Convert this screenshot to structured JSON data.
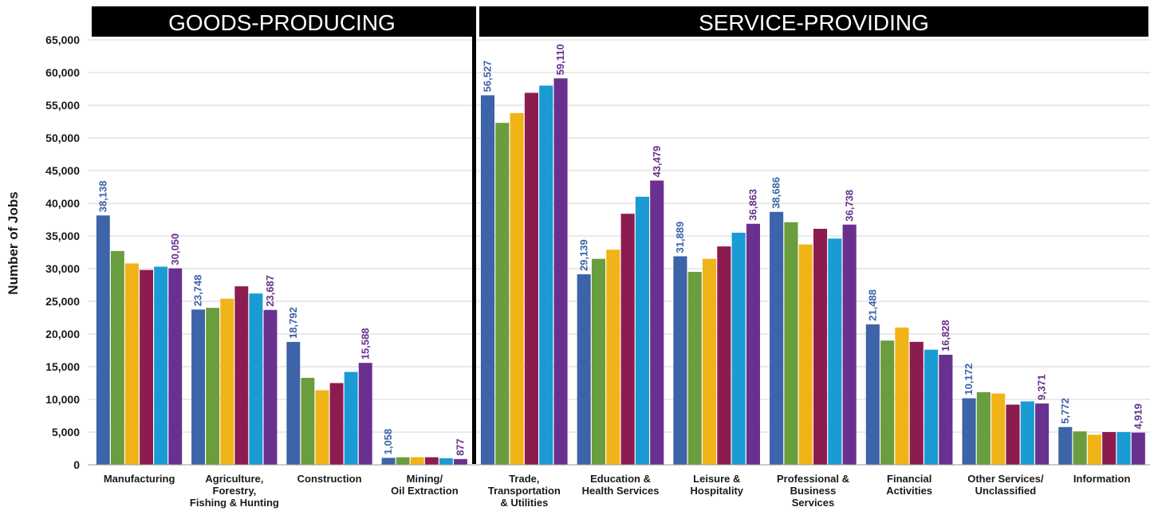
{
  "chart_data": {
    "type": "bar",
    "ylabel": "Number of Jobs",
    "ylim": [
      0,
      65000
    ],
    "yticks": [
      "0",
      "5,000",
      "10,000",
      "15,000",
      "20,000",
      "25,000",
      "30,000",
      "35,000",
      "40,000",
      "45,000",
      "50,000",
      "55,000",
      "60,000",
      "65,000"
    ],
    "grid": true,
    "groups": [
      {
        "title": "GOODS-PRODUCING",
        "category_count": 4
      },
      {
        "title": "SERVICE-PROVIDING",
        "category_count": 7
      }
    ],
    "categories": [
      "Manufacturing",
      "Agriculture,\nForestry,\nFishing & Hunting",
      "Construction",
      "Mining/\nOil Extraction",
      "Trade,\nTransportation\n& Utilities",
      "Education &\nHealth Services",
      "Leisure &\nHospitality",
      "Professional &\nBusiness\nServices",
      "Financial\nActivities",
      "Other Services/\nUnclassified",
      "Information"
    ],
    "series_colors": [
      "#3d63a8",
      "#6a9d3e",
      "#f0b418",
      "#8c1c50",
      "#1a9bd4",
      "#6a3090"
    ],
    "series": [
      {
        "values": [
          38138,
          23748,
          18792,
          1058,
          56527,
          29139,
          31889,
          38686,
          21488,
          10172,
          5772
        ]
      },
      {
        "values": [
          32700,
          24000,
          13300,
          1150,
          52300,
          31500,
          29500,
          37100,
          19000,
          11100,
          5100
        ]
      },
      {
        "values": [
          30800,
          25400,
          11400,
          1150,
          53800,
          32900,
          31500,
          33700,
          21000,
          10900,
          4600
        ]
      },
      {
        "values": [
          29800,
          27300,
          12500,
          1150,
          56900,
          38400,
          33400,
          36100,
          18800,
          9200,
          5000
        ]
      },
      {
        "values": [
          30300,
          26200,
          14200,
          1000,
          58000,
          41000,
          35500,
          34600,
          17600,
          9700,
          5000
        ]
      },
      {
        "values": [
          30050,
          23687,
          15588,
          877,
          59110,
          43479,
          36863,
          36738,
          16828,
          9371,
          4919
        ]
      }
    ],
    "data_labels": {
      "first": [
        "38,138",
        "23,748",
        "18,792",
        "1,058",
        "56,527",
        "29,139",
        "31,889",
        "38,686",
        "21,488",
        "10,172",
        "5,772"
      ],
      "last": [
        "30,050",
        "23,687",
        "15,588",
        "877",
        "59,110",
        "43,479",
        "36,863",
        "36,738",
        "16,828",
        "9,371",
        "4,919"
      ]
    }
  }
}
